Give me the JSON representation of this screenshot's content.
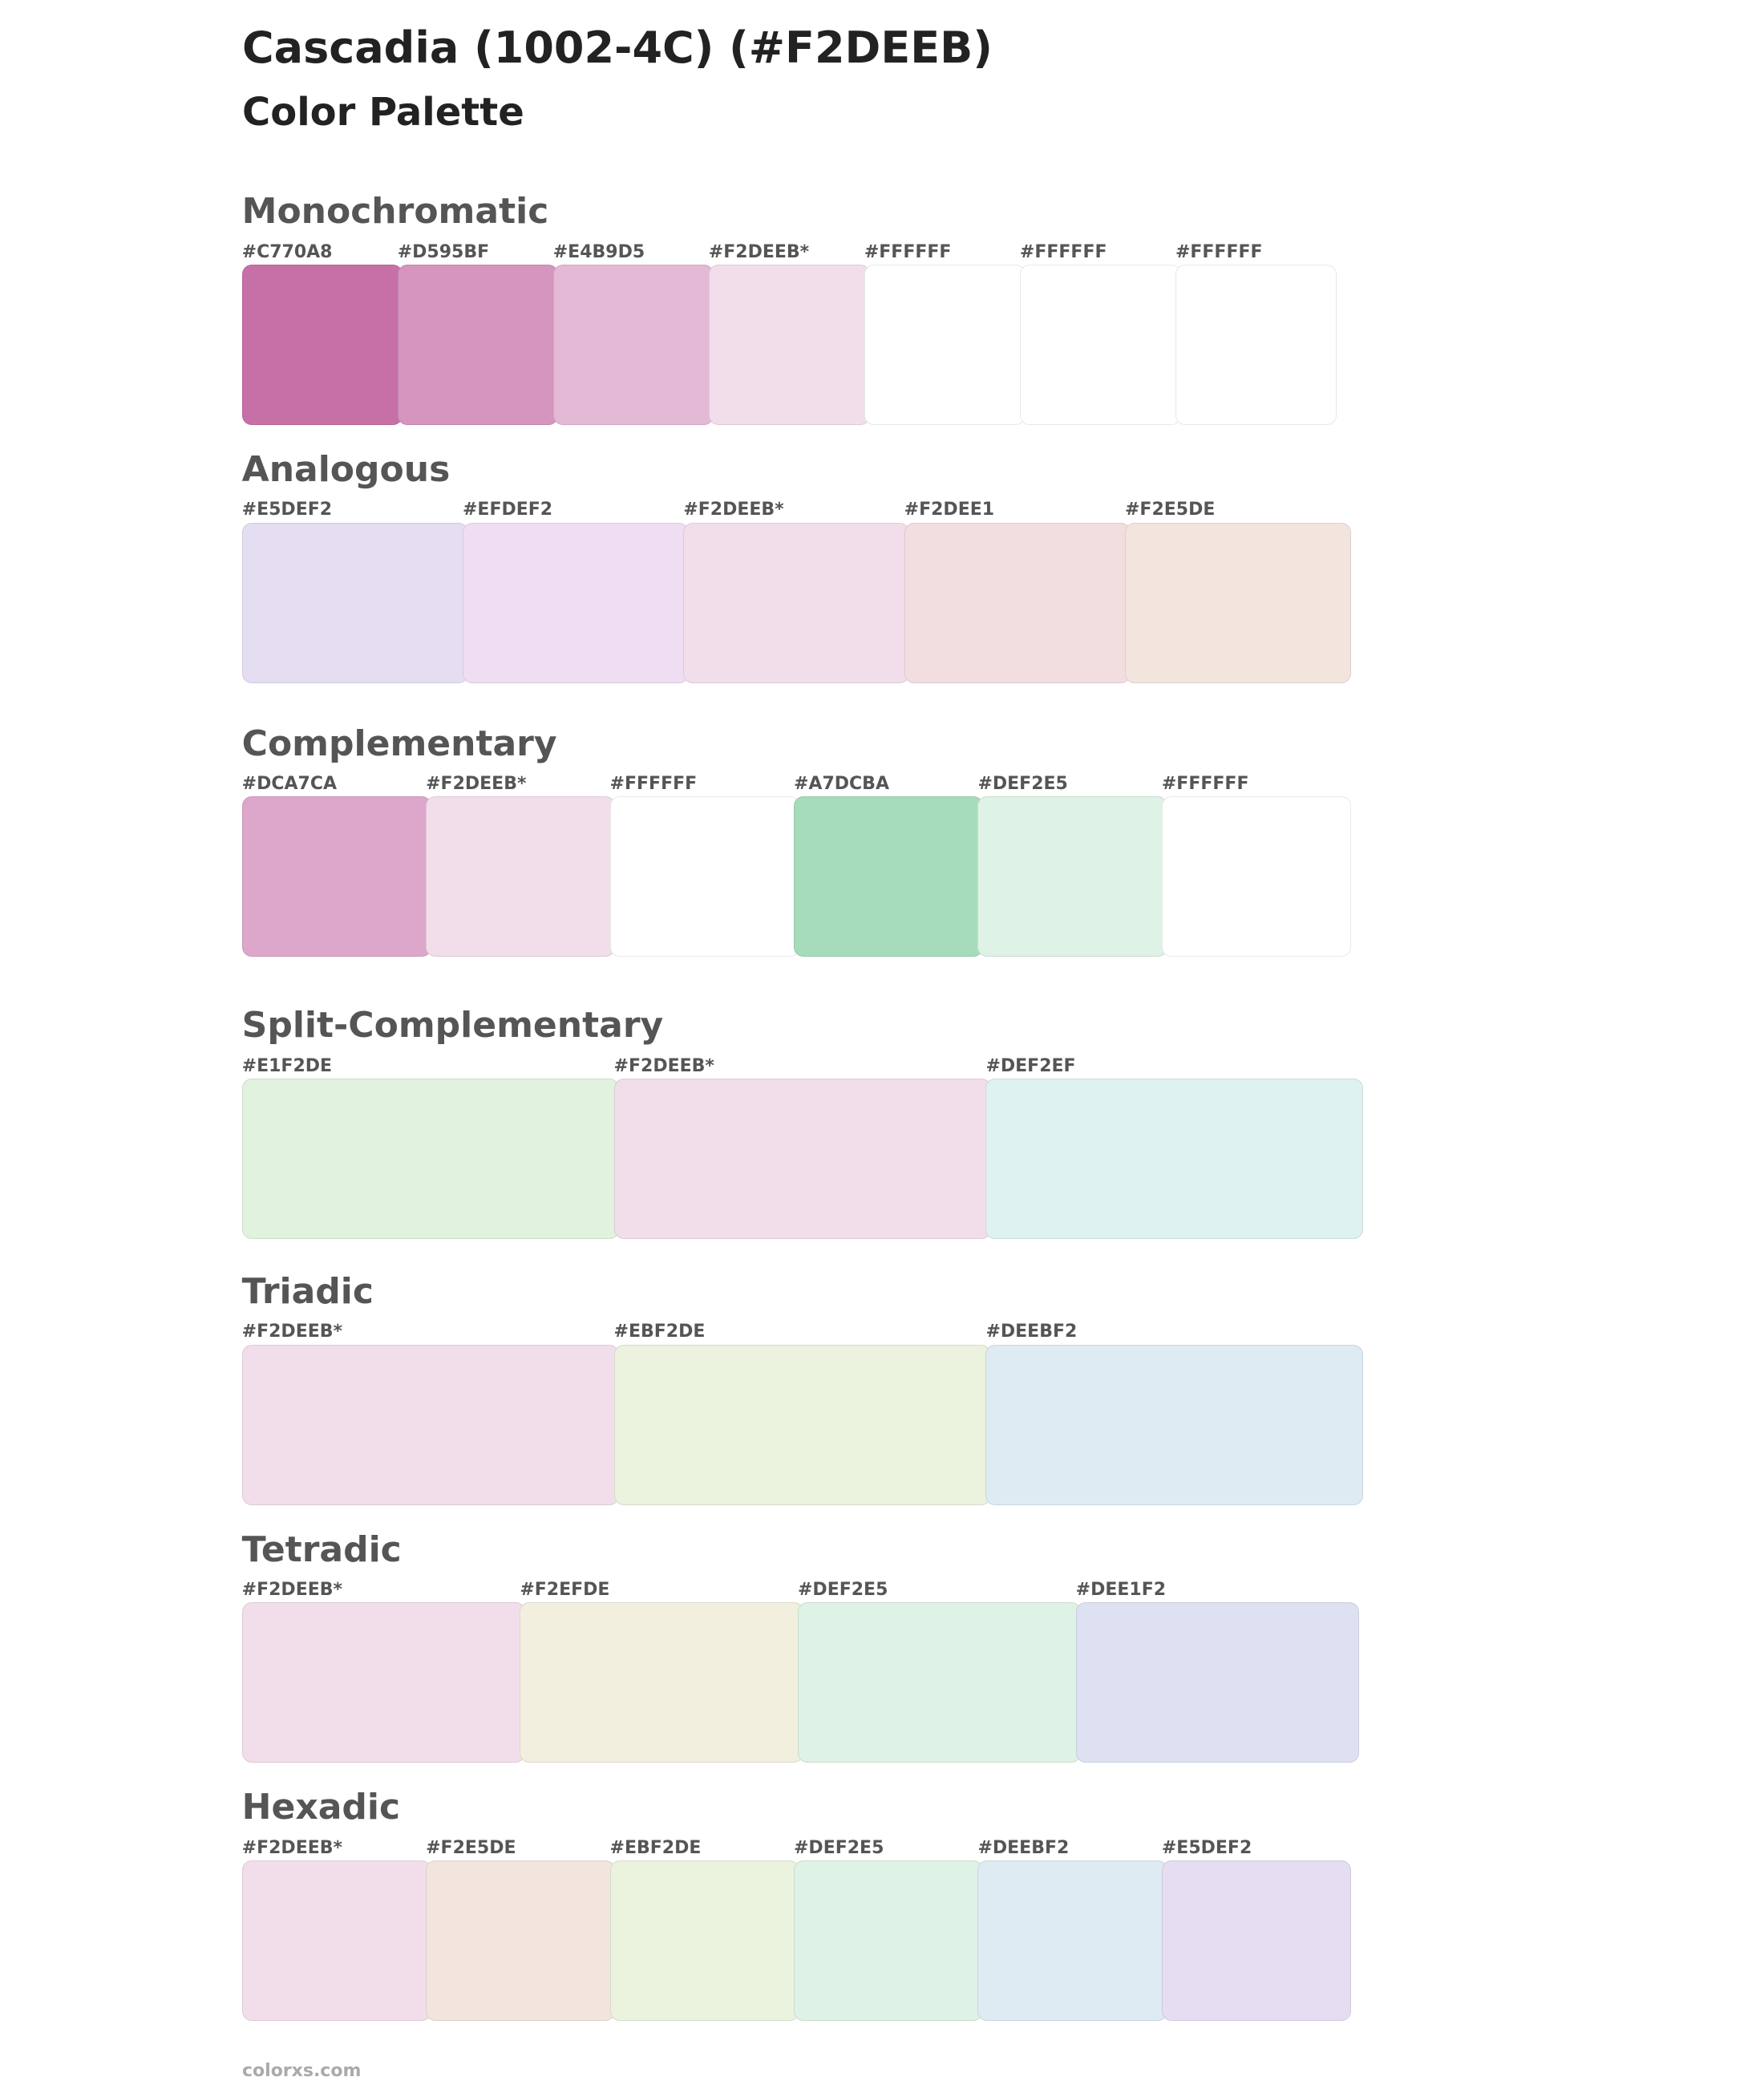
{
  "header": {
    "title": "Cascadia (1002-4C) (#F2DEEB)",
    "subtitle": "Color Palette"
  },
  "sections": [
    {
      "title": "Monochromatic",
      "swatches": [
        {
          "label": "#C770A8",
          "color": "#C770A8"
        },
        {
          "label": "#D595BF",
          "color": "#D595BF"
        },
        {
          "label": "#E4B9D5",
          "color": "#E4B9D5"
        },
        {
          "label": "#F2DEEB*",
          "color": "#F2DEEB"
        },
        {
          "label": "#FFFFFF",
          "color": "#FFFFFF"
        },
        {
          "label": "#FFFFFF",
          "color": "#FFFFFF"
        },
        {
          "label": "#FFFFFF",
          "color": "#FFFFFF"
        }
      ]
    },
    {
      "title": "Analogous",
      "swatches": [
        {
          "label": "#E5DEF2",
          "color": "#E5DEF2"
        },
        {
          "label": "#EFDEF2",
          "color": "#EFDEF2"
        },
        {
          "label": "#F2DEEB*",
          "color": "#F2DEEB"
        },
        {
          "label": "#F2DEE1",
          "color": "#F2DEE1"
        },
        {
          "label": "#F2E5DE",
          "color": "#F2E5DE"
        }
      ]
    },
    {
      "title": "Complementary",
      "swatches": [
        {
          "label": "#DCA7CA",
          "color": "#DCA7CA"
        },
        {
          "label": "#F2DEEB*",
          "color": "#F2DEEB"
        },
        {
          "label": "#FFFFFF",
          "color": "#FFFFFF"
        },
        {
          "label": "#A7DCBA",
          "color": "#A7DCBA"
        },
        {
          "label": "#DEF2E5",
          "color": "#DEF2E5"
        },
        {
          "label": "#FFFFFF",
          "color": "#FFFFFF"
        }
      ]
    },
    {
      "title": "Split-Complementary",
      "swatches": [
        {
          "label": "#E1F2DE",
          "color": "#E1F2DE"
        },
        {
          "label": "#F2DEEB*",
          "color": "#F2DEEB"
        },
        {
          "label": "#DEF2EF",
          "color": "#DEF2EF"
        }
      ]
    },
    {
      "title": "Triadic",
      "swatches": [
        {
          "label": "#F2DEEB*",
          "color": "#F2DEEB"
        },
        {
          "label": "#EBF2DE",
          "color": "#EBF2DE"
        },
        {
          "label": "#DEEBF2",
          "color": "#DEEBF2"
        }
      ]
    },
    {
      "title": "Tetradic",
      "swatches": [
        {
          "label": "#F2DEEB*",
          "color": "#F2DEEB"
        },
        {
          "label": "#F2EFDE",
          "color": "#F2EFDE"
        },
        {
          "label": "#DEF2E5",
          "color": "#DEF2E5"
        },
        {
          "label": "#DEE1F2",
          "color": "#DEE1F2"
        }
      ]
    },
    {
      "title": "Hexadic",
      "swatches": [
        {
          "label": "#F2DEEB*",
          "color": "#F2DEEB"
        },
        {
          "label": "#F2E5DE",
          "color": "#F2E5DE"
        },
        {
          "label": "#EBF2DE",
          "color": "#EBF2DE"
        },
        {
          "label": "#DEF2E5",
          "color": "#DEF2E5"
        },
        {
          "label": "#DEEBF2",
          "color": "#DEEBF2"
        },
        {
          "label": "#E5DEF2",
          "color": "#E5DEF2"
        }
      ]
    }
  ],
  "footer": "colorxs.com"
}
